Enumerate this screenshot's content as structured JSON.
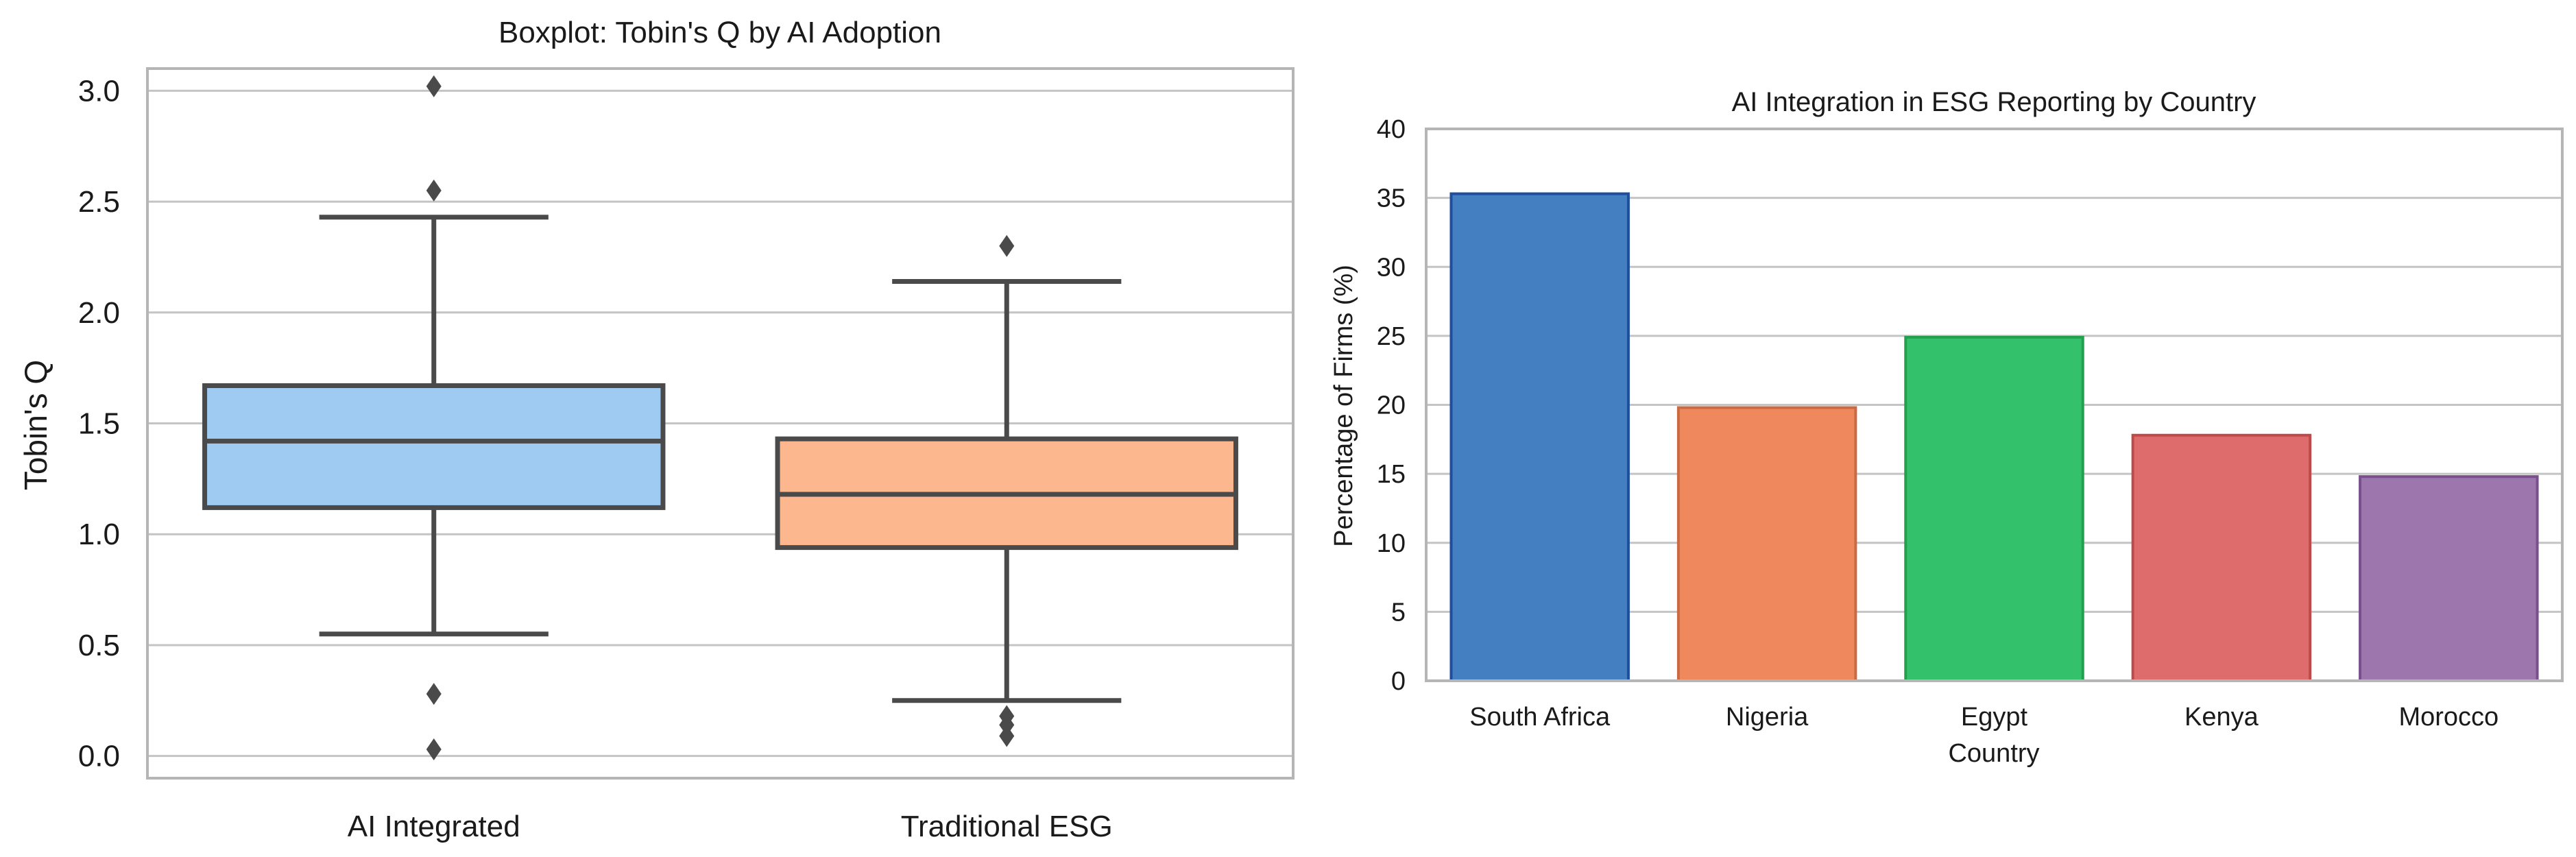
{
  "chart_data": [
    {
      "type": "boxplot",
      "title": "Boxplot: Tobin's Q by AI Adoption",
      "xlabel": "",
      "ylabel": "Tobin's Q",
      "ylim": [
        -0.1,
        3.1
      ],
      "yticks": [
        0.0,
        0.5,
        1.0,
        1.5,
        2.0,
        2.5,
        3.0
      ],
      "ytick_labels": [
        "0.0",
        "0.5",
        "1.0",
        "1.5",
        "2.0",
        "2.5",
        "3.0"
      ],
      "grid": true,
      "groups": [
        {
          "name": "AI Integrated",
          "color": "#9fcbf2",
          "whisker_low": 0.55,
          "q1": 1.12,
          "median": 1.42,
          "q3": 1.67,
          "whisker_high": 2.43,
          "outliers": [
            0.03,
            0.28,
            2.55,
            3.02
          ]
        },
        {
          "name": "Traditional ESG",
          "color": "#fdb78f",
          "whisker_low": 0.25,
          "q1": 0.94,
          "median": 1.18,
          "q3": 1.43,
          "whisker_high": 2.14,
          "outliers": [
            0.09,
            0.14,
            0.18,
            2.3
          ]
        }
      ]
    },
    {
      "type": "bar",
      "title": "AI Integration in ESG Reporting by Country",
      "xlabel": "Country",
      "ylabel": "Percentage of Firms (%)",
      "ylim": [
        0,
        40
      ],
      "yticks": [
        0,
        5,
        10,
        15,
        20,
        25,
        30,
        35,
        40
      ],
      "ytick_labels": [
        "0",
        "5",
        "10",
        "15",
        "20",
        "25",
        "30",
        "35",
        "40"
      ],
      "grid": true,
      "categories": [
        "South Africa",
        "Nigeria",
        "Egypt",
        "Kenya",
        "Morocco"
      ],
      "values": [
        35.3,
        19.8,
        24.9,
        17.8,
        14.8
      ],
      "colors": [
        "#437fc1",
        "#f0885e",
        "#33c16b",
        "#df6c6c",
        "#9e76ae"
      ],
      "edge_colors": [
        "#1f4e9c",
        "#c96a42",
        "#22a050",
        "#bf4a4a",
        "#7a4f8e"
      ]
    }
  ]
}
